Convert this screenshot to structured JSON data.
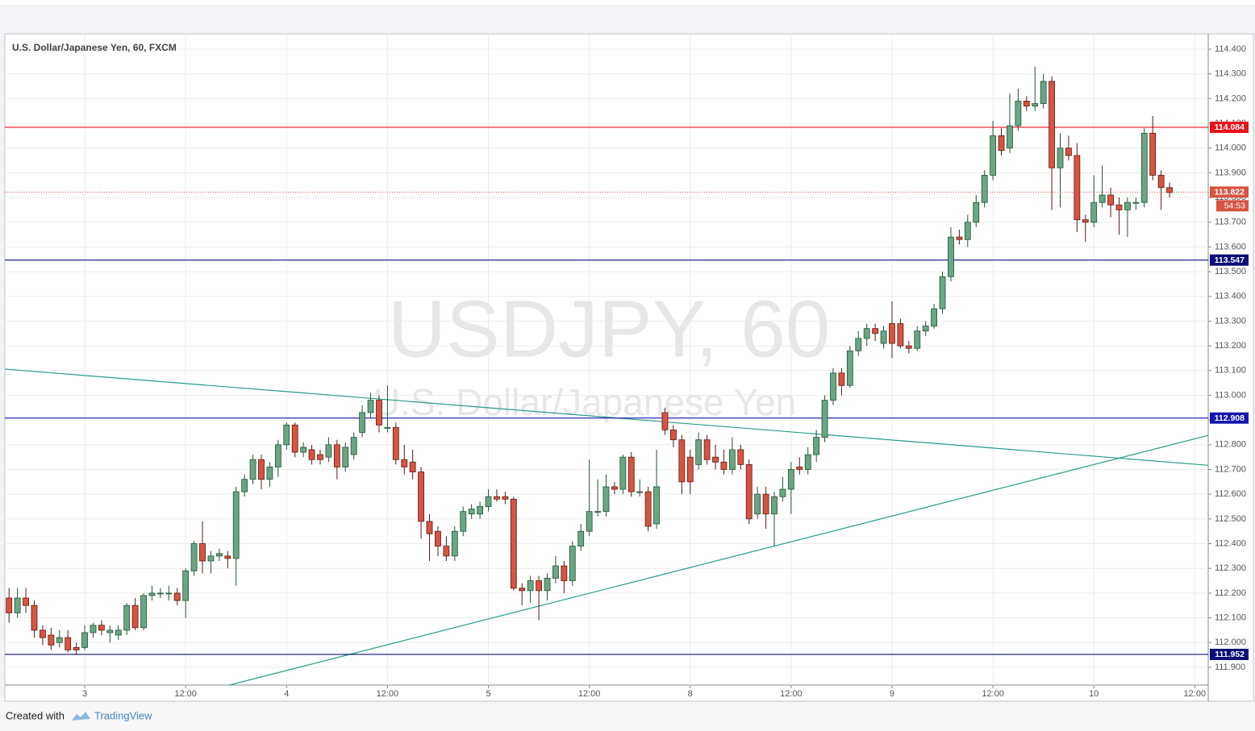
{
  "chart_data": {
    "type": "candlestick",
    "title": "U.S. Dollar/Japanese Yen, 60, FXCM",
    "watermark": "USDJPY, 60",
    "watermark_subtitle": "U.S. Dollar/Japanese Yen",
    "x": [
      0,
      1,
      2,
      3,
      4,
      5,
      6,
      7,
      8,
      9,
      10,
      11,
      12,
      13,
      14,
      15,
      16,
      17,
      18,
      19,
      20,
      21,
      22,
      23,
      24,
      25,
      26,
      27,
      28,
      29,
      30,
      31,
      32,
      33,
      34,
      35,
      36,
      37,
      38,
      39,
      40,
      41,
      42,
      43,
      44,
      45,
      46,
      47,
      48,
      49,
      50,
      51,
      52,
      53,
      54,
      55,
      56,
      57,
      58,
      59,
      60,
      61,
      62,
      63,
      64,
      65,
      66,
      67,
      68,
      69,
      70,
      71,
      72,
      73,
      74,
      75,
      76,
      77,
      78,
      79,
      80,
      81,
      82,
      83,
      84,
      85,
      86,
      87,
      88,
      89,
      90,
      91,
      92,
      93,
      94,
      95,
      96,
      97,
      98,
      99,
      100,
      101,
      102,
      103,
      104,
      105,
      106,
      107,
      108,
      109,
      110,
      111,
      112,
      113,
      114,
      115,
      116,
      117,
      118,
      119,
      120,
      121,
      122,
      123,
      124,
      125,
      126,
      127,
      128,
      129,
      130,
      131,
      132,
      133,
      134,
      135,
      136,
      137,
      138
    ],
    "open": [
      112.18,
      112.12,
      112.18,
      112.15,
      112.05,
      112.03,
      112.0,
      112.02,
      111.98,
      111.98,
      112.04,
      112.07,
      112.04,
      112.03,
      112.05,
      112.15,
      112.06,
      112.19,
      112.2,
      112.2,
      112.2,
      112.17,
      112.29,
      112.4,
      112.33,
      112.35,
      112.35,
      112.34,
      112.61,
      112.66,
      112.74,
      112.66,
      112.71,
      112.8,
      112.88,
      112.77,
      112.78,
      112.76,
      112.75,
      112.8,
      112.71,
      112.76,
      112.85,
      112.93,
      112.98,
      112.87,
      112.87,
      112.74,
      112.73,
      112.69,
      112.49,
      112.45,
      112.39,
      112.35,
      112.45,
      112.52,
      112.52,
      112.55,
      112.59,
      112.59,
      112.58,
      112.22,
      112.21,
      112.25,
      112.21,
      112.26,
      112.31,
      112.25,
      112.39,
      112.45,
      112.53,
      112.53,
      112.63,
      112.62,
      112.75,
      112.61,
      112.61,
      112.48,
      112.93,
      112.86,
      112.82,
      112.75,
      112.72,
      112.82,
      112.75,
      112.73,
      112.7,
      112.78,
      112.72,
      112.52,
      112.6,
      112.52,
      112.59,
      112.62,
      112.71,
      112.7,
      112.76,
      112.83,
      112.98,
      113.09,
      113.04,
      113.18,
      113.23,
      113.27,
      113.21,
      113.29,
      113.29,
      113.2,
      113.19,
      113.26,
      113.28,
      113.35,
      113.48,
      113.64,
      113.63,
      113.7,
      113.78,
      113.89,
      114.05,
      114.0,
      114.09,
      114.19,
      114.17,
      114.18,
      114.27,
      113.92,
      114.0,
      113.97,
      113.71,
      113.7,
      113.78,
      113.81,
      113.77,
      113.75,
      113.78,
      113.78,
      114.06,
      113.89,
      113.84
    ],
    "high": [
      112.22,
      112.22,
      112.22,
      112.17,
      112.07,
      112.06,
      112.05,
      112.05,
      112.0,
      112.07,
      112.08,
      112.09,
      112.07,
      112.07,
      112.16,
      112.18,
      112.2,
      112.23,
      112.22,
      112.23,
      112.22,
      112.3,
      112.41,
      112.49,
      112.37,
      112.38,
      112.37,
      112.63,
      112.68,
      112.76,
      112.76,
      112.73,
      112.82,
      112.89,
      112.89,
      112.81,
      112.8,
      112.78,
      112.83,
      112.82,
      112.81,
      112.85,
      112.96,
      113.01,
      113.0,
      113.04,
      112.89,
      112.8,
      112.78,
      112.71,
      112.52,
      112.47,
      112.43,
      112.47,
      112.55,
      112.56,
      112.57,
      112.62,
      112.62,
      112.61,
      112.59,
      112.24,
      112.27,
      112.27,
      112.28,
      112.35,
      112.33,
      112.41,
      112.48,
      112.74,
      112.66,
      112.68,
      112.65,
      112.76,
      112.77,
      112.66,
      112.63,
      112.78,
      112.95,
      112.88,
      112.84,
      112.78,
      112.85,
      112.84,
      112.8,
      112.78,
      112.83,
      112.8,
      112.74,
      112.63,
      112.63,
      112.61,
      112.67,
      112.73,
      112.75,
      112.79,
      112.86,
      113.0,
      113.11,
      113.11,
      113.2,
      113.26,
      113.29,
      113.29,
      113.28,
      113.38,
      113.31,
      113.22,
      113.28,
      113.3,
      113.37,
      113.5,
      113.68,
      113.67,
      113.73,
      113.81,
      113.91,
      114.11,
      114.08,
      114.22,
      114.24,
      114.21,
      114.33,
      114.3,
      114.29,
      114.06,
      114.05,
      114.02,
      113.73,
      113.89,
      113.93,
      113.84,
      113.8,
      113.8,
      113.8,
      114.08,
      114.13,
      113.91,
      113.86
    ],
    "low": [
      112.08,
      112.1,
      112.12,
      112.02,
      111.99,
      111.97,
      111.98,
      111.96,
      111.95,
      111.97,
      112.02,
      112.03,
      112.0,
      112.01,
      112.03,
      112.05,
      112.05,
      112.17,
      112.18,
      112.17,
      112.15,
      112.1,
      112.27,
      112.28,
      112.28,
      112.33,
      112.3,
      112.23,
      112.59,
      112.64,
      112.62,
      112.63,
      112.67,
      112.78,
      112.75,
      112.75,
      112.72,
      112.72,
      112.73,
      112.66,
      112.69,
      112.74,
      112.83,
      112.91,
      112.85,
      112.85,
      112.72,
      112.68,
      112.66,
      112.42,
      112.33,
      112.35,
      112.33,
      112.33,
      112.43,
      112.5,
      112.5,
      112.53,
      112.57,
      112.56,
      112.21,
      112.15,
      112.16,
      112.09,
      112.17,
      112.24,
      112.2,
      112.23,
      112.37,
      112.43,
      112.51,
      112.51,
      112.6,
      112.6,
      112.59,
      112.59,
      112.45,
      112.46,
      112.84,
      112.79,
      112.6,
      112.6,
      112.7,
      112.72,
      112.7,
      112.68,
      112.68,
      112.7,
      112.48,
      112.5,
      112.46,
      112.39,
      112.57,
      112.52,
      112.68,
      112.68,
      112.73,
      112.81,
      112.96,
      113.0,
      113.03,
      113.16,
      113.2,
      113.22,
      113.19,
      113.15,
      113.19,
      113.17,
      113.18,
      113.24,
      113.27,
      113.33,
      113.46,
      113.61,
      113.6,
      113.68,
      113.76,
      113.87,
      113.97,
      113.98,
      114.07,
      114.15,
      114.15,
      114.16,
      113.75,
      113.76,
      113.95,
      113.66,
      113.62,
      113.68,
      113.76,
      113.72,
      113.65,
      113.64,
      113.75,
      113.76,
      113.87,
      113.75,
      113.8
    ],
    "close": [
      112.12,
      112.18,
      112.15,
      112.05,
      112.02,
      111.99,
      112.02,
      111.97,
      111.97,
      112.04,
      112.07,
      112.05,
      112.05,
      112.05,
      112.15,
      112.06,
      112.19,
      112.2,
      112.2,
      112.2,
      112.17,
      112.29,
      112.4,
      112.33,
      112.35,
      112.36,
      112.34,
      112.61,
      112.66,
      112.74,
      112.66,
      112.71,
      112.8,
      112.88,
      112.77,
      112.79,
      112.74,
      112.74,
      112.8,
      112.71,
      112.79,
      112.83,
      112.93,
      112.98,
      112.88,
      112.87,
      112.74,
      112.71,
      112.69,
      112.49,
      112.44,
      112.39,
      112.35,
      112.45,
      112.53,
      112.54,
      112.55,
      112.59,
      112.58,
      112.58,
      112.22,
      112.21,
      112.25,
      112.21,
      112.26,
      112.31,
      112.25,
      112.39,
      112.45,
      112.53,
      112.53,
      112.63,
      112.62,
      112.75,
      112.61,
      112.61,
      112.47,
      112.63,
      112.86,
      112.82,
      112.65,
      112.65,
      112.82,
      112.74,
      112.73,
      112.7,
      112.78,
      112.72,
      112.5,
      112.6,
      112.52,
      112.59,
      112.62,
      112.7,
      112.7,
      112.76,
      112.83,
      112.98,
      113.09,
      113.04,
      113.18,
      113.23,
      113.27,
      113.25,
      113.26,
      113.21,
      113.2,
      113.19,
      113.26,
      113.28,
      113.35,
      113.48,
      113.64,
      113.63,
      113.7,
      113.78,
      113.89,
      114.05,
      113.99,
      114.09,
      114.19,
      114.17,
      114.18,
      114.27,
      113.92,
      114.0,
      113.97,
      113.71,
      113.7,
      113.78,
      113.81,
      113.77,
      113.75,
      113.78,
      113.78,
      114.06,
      113.89,
      113.84,
      113.82
    ],
    "up_color": "#6ba583",
    "up_border": "#225437",
    "down_color": "#d75442",
    "down_border": "#5b1a13",
    "xlim": [
      -0.5,
      142.6
    ],
    "xticks": [
      {
        "value": 9,
        "label": "3"
      },
      {
        "value": 21,
        "label": "12:00"
      },
      {
        "value": 33,
        "label": "4"
      },
      {
        "value": 45,
        "label": "12:00"
      },
      {
        "value": 57,
        "label": "5"
      },
      {
        "value": 69,
        "label": "12:00"
      },
      {
        "value": 81,
        "label": "8"
      },
      {
        "value": 93,
        "label": "12:00"
      },
      {
        "value": 105,
        "label": "9"
      },
      {
        "value": 117,
        "label": "12:00"
      },
      {
        "value": 129,
        "label": "10"
      },
      {
        "value": 141,
        "label": "12:00"
      }
    ],
    "ylim": [
      111.828,
      114.462
    ],
    "yticks": [
      {
        "value": 111.9,
        "label": "111.900"
      },
      {
        "value": 112.0,
        "label": "112.000"
      },
      {
        "value": 112.1,
        "label": "112.100"
      },
      {
        "value": 112.2,
        "label": "112.200"
      },
      {
        "value": 112.3,
        "label": "112.300"
      },
      {
        "value": 112.4,
        "label": "112.400"
      },
      {
        "value": 112.5,
        "label": "112.500"
      },
      {
        "value": 112.6,
        "label": "112.600"
      },
      {
        "value": 112.7,
        "label": "112.700"
      },
      {
        "value": 112.8,
        "label": "112.800"
      },
      {
        "value": 112.9,
        "label": "112.900"
      },
      {
        "value": 113.0,
        "label": "113.000"
      },
      {
        "value": 113.1,
        "label": "113.100"
      },
      {
        "value": 113.2,
        "label": "113.200"
      },
      {
        "value": 113.3,
        "label": "113.300"
      },
      {
        "value": 113.4,
        "label": "113.400"
      },
      {
        "value": 113.5,
        "label": "113.500"
      },
      {
        "value": 113.6,
        "label": "113.600"
      },
      {
        "value": 113.7,
        "label": "113.700"
      },
      {
        "value": 113.8,
        "label": "113.800"
      },
      {
        "value": 113.9,
        "label": "113.900"
      },
      {
        "value": 114.0,
        "label": "114.000"
      },
      {
        "value": 114.1,
        "label": "114.100"
      },
      {
        "value": 114.2,
        "label": "114.200"
      },
      {
        "value": 114.3,
        "label": "114.300"
      },
      {
        "value": 114.4,
        "label": "114.400"
      }
    ],
    "grid": true,
    "levels": [
      {
        "value": 114.084,
        "color": "#e8121a"
      },
      {
        "value": 113.547,
        "color": "#0c0c7a"
      },
      {
        "value": 112.908,
        "color": "#1515b0"
      },
      {
        "value": 111.952,
        "color": "#0c0c7a"
      }
    ],
    "last_price": 113.822,
    "last_price_color": "#d75442",
    "countdown": "54:53",
    "trendlines": [
      {
        "x": [
          -0.5,
          142.6
        ],
        "y": [
          113.106,
          112.717
        ],
        "color": "#2a9a8c"
      },
      {
        "x": [
          26.2,
          142.6
        ],
        "y": [
          111.828,
          112.838
        ],
        "color": "#2a9a8c"
      }
    ]
  },
  "footer": {
    "created_with": "Created with",
    "brand": "TradingView"
  }
}
